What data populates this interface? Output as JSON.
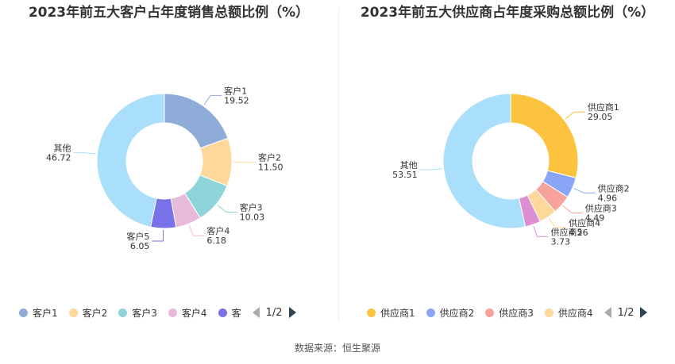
{
  "chart_data": [
    {
      "type": "pie",
      "title": "2023年前五大客户占年度销售总额比例（%）",
      "categories": [
        "客户1",
        "客户2",
        "客户3",
        "客户4",
        "客户5",
        "其他"
      ],
      "values": [
        19.52,
        11.5,
        10.03,
        6.18,
        6.05,
        46.72
      ],
      "value_labels": [
        "19.52",
        "11.50",
        "10.03",
        "6.18",
        "6.05",
        "46.72"
      ],
      "colors": [
        "#8facd9",
        "#fed89a",
        "#8dd5d9",
        "#e8bada",
        "#7a72e9",
        "#a9dffa"
      ],
      "legend": {
        "placement": "bottom",
        "visible_items": [
          "客户1",
          "客户2",
          "客户3",
          "客户4",
          "客"
        ],
        "page": "1/2"
      }
    },
    {
      "type": "pie",
      "title": "2023年前五大供应商占年度采购总额比例（%）",
      "categories": [
        "供应商1",
        "供应商2",
        "供应商3",
        "供应商4",
        "供应商5",
        "其他"
      ],
      "values": [
        29.05,
        4.96,
        4.49,
        4.26,
        3.73,
        53.51
      ],
      "value_labels": [
        "29.05",
        "4.96",
        "4.49",
        "4.26",
        "3.73",
        "53.51"
      ],
      "colors": [
        "#fcc43e",
        "#88a6f5",
        "#f7a39b",
        "#fed89a",
        "#dd8ed1",
        "#a9dffa"
      ],
      "legend": {
        "placement": "bottom",
        "visible_items": [
          "供应商1",
          "供应商2",
          "供应商3",
          "供应商4"
        ],
        "page": "1/2"
      }
    }
  ],
  "source_text": "数据来源：恒生聚源"
}
